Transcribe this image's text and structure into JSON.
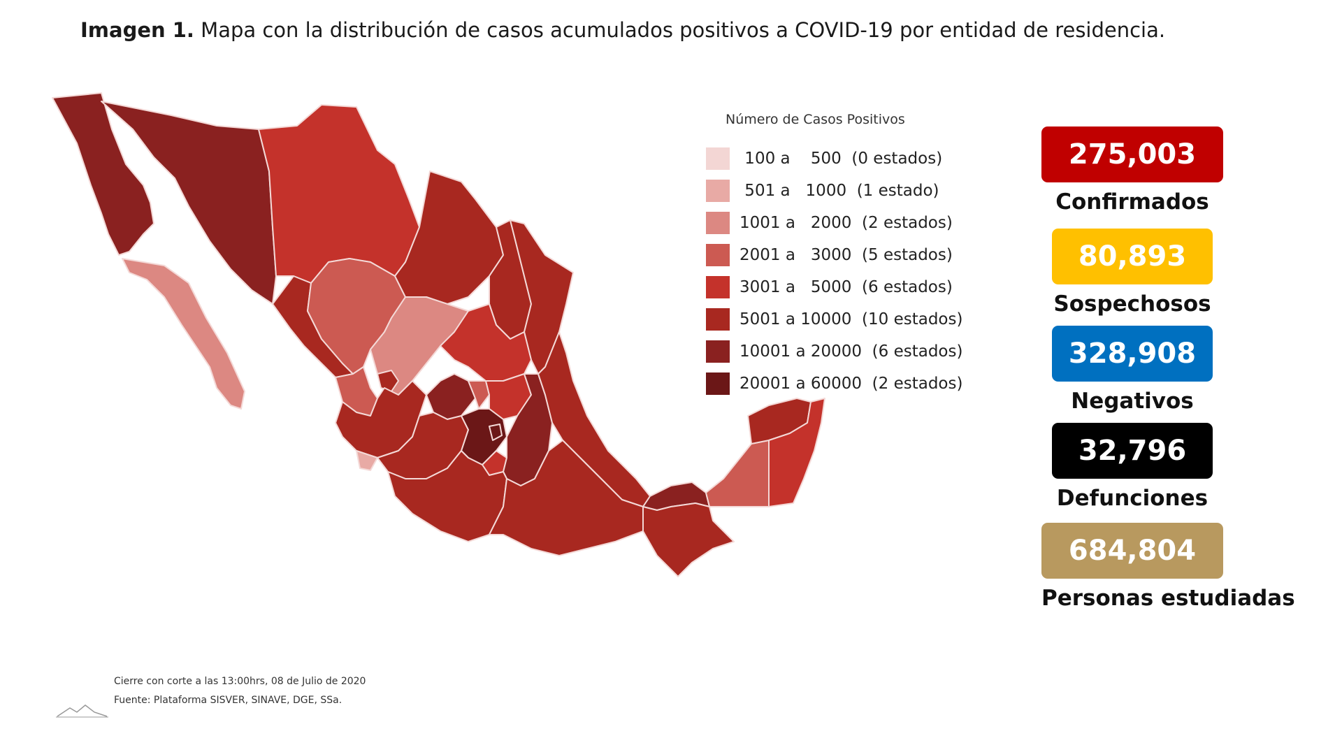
{
  "title": {
    "bold": "Imagen 1.",
    "text": "Mapa con la distribución de casos acumulados positivos a COVID-19 por entidad de residencia."
  },
  "legend": {
    "title": "Número de Casos Positivos",
    "items": [
      {
        "label": " 100 a    500  (0 estados)",
        "color": "#f3d6d4"
      },
      {
        "label": " 501 a   1000  (1 estado)",
        "color": "#e8aaa5"
      },
      {
        "label": "1001 a   2000  (2 estados)",
        "color": "#dc8882"
      },
      {
        "label": "2001 a   3000  (5 estados)",
        "color": "#cc5a52"
      },
      {
        "label": "3001 a   5000  (6 estados)",
        "color": "#c4322b"
      },
      {
        "label": "5001 a 10000  (10 estados)",
        "color": "#a82820"
      },
      {
        "label": "10001 a 20000  (6 estados)",
        "color": "#8a2120"
      },
      {
        "label": "20001 a 60000  (2 estados)",
        "color": "#6b1717"
      }
    ]
  },
  "stats": [
    {
      "value": "275,003",
      "label": "Confirmados",
      "color": "#c00000"
    },
    {
      "value": "80,893",
      "label": "Sospechosos",
      "color": "#ffc000"
    },
    {
      "value": "328,908",
      "label": "Negativos",
      "color": "#0070c0"
    },
    {
      "value": "32,796",
      "label": "Defunciones",
      "color": "#000000"
    },
    {
      "value": "684,804",
      "label": "Personas estudiadas",
      "color": "#b8995f"
    }
  ],
  "footer": {
    "line1": "Cierre con corte a las 13:00hrs, 08 de Julio de 2020",
    "line2": "Fuente: Plataforma SISVER, SINAVE, DGE, SSa."
  },
  "map_colors": {
    "darkest": "#6b1717",
    "dark": "#8a2120",
    "mid_dark": "#a82820",
    "mid": "#c4322b",
    "mid_light": "#cc5a52",
    "light": "#dc8882",
    "lighter": "#e8aaa5",
    "border": "#f4d9d7"
  }
}
